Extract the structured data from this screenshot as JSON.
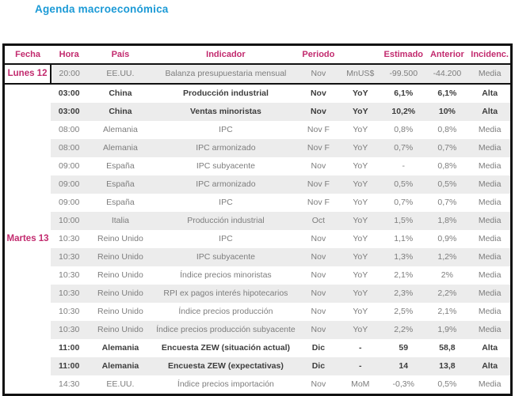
{
  "title": "Agenda macroeconómica",
  "colors": {
    "accent_blue": "#1b9ad6",
    "accent_magenta": "#c22a6e",
    "row_shade": "#ececec",
    "text_gray": "#7d7d7d",
    "text_dark": "#3d3d3d",
    "border": "#111111"
  },
  "table": {
    "columns": [
      "Fecha",
      "Hora",
      "País",
      "Indicador",
      "Periodo",
      "",
      "Estimado",
      "Anterior",
      "Incidenc."
    ],
    "groups": [
      {
        "label": "Lunes 12",
        "rows": [
          {
            "hora": "20:00",
            "pais": "EE.UU.",
            "indicador": "Balanza presupuestaria mensual",
            "periodo": "Nov",
            "unidad": "MnUS$",
            "estimado": "-99.500",
            "anterior": "-44.200",
            "incidencia": "Media"
          }
        ]
      },
      {
        "label": "Martes 13",
        "rows": [
          {
            "hora": "03:00",
            "pais": "China",
            "indicador": "Producción industrial",
            "periodo": "Nov",
            "unidad": "YoY",
            "estimado": "6,1%",
            "anterior": "6,1%",
            "incidencia": "Alta"
          },
          {
            "hora": "03:00",
            "pais": "China",
            "indicador": "Ventas minoristas",
            "periodo": "Nov",
            "unidad": "YoY",
            "estimado": "10,2%",
            "anterior": "10%",
            "incidencia": "Alta"
          },
          {
            "hora": "08:00",
            "pais": "Alemania",
            "indicador": "IPC",
            "periodo": "Nov F",
            "unidad": "YoY",
            "estimado": "0,8%",
            "anterior": "0,8%",
            "incidencia": "Media"
          },
          {
            "hora": "08:00",
            "pais": "Alemania",
            "indicador": "IPC armonizado",
            "periodo": "Nov F",
            "unidad": "YoY",
            "estimado": "0,7%",
            "anterior": "0,7%",
            "incidencia": "Media"
          },
          {
            "hora": "09:00",
            "pais": "España",
            "indicador": "IPC subyacente",
            "periodo": "Nov",
            "unidad": "YoY",
            "estimado": "-",
            "anterior": "0,8%",
            "incidencia": "Media"
          },
          {
            "hora": "09:00",
            "pais": "España",
            "indicador": "IPC armonizado",
            "periodo": "Nov F",
            "unidad": "YoY",
            "estimado": "0,5%",
            "anterior": "0,5%",
            "incidencia": "Media"
          },
          {
            "hora": "09:00",
            "pais": "España",
            "indicador": "IPC",
            "periodo": "Nov F",
            "unidad": "YoY",
            "estimado": "0,7%",
            "anterior": "0,7%",
            "incidencia": "Media"
          },
          {
            "hora": "10:00",
            "pais": "Italia",
            "indicador": "Producción industrial",
            "periodo": "Oct",
            "unidad": "YoY",
            "estimado": "1,5%",
            "anterior": "1,8%",
            "incidencia": "Media"
          },
          {
            "hora": "10:30",
            "pais": "Reino Unido",
            "indicador": "IPC",
            "periodo": "Nov",
            "unidad": "YoY",
            "estimado": "1,1%",
            "anterior": "0,9%",
            "incidencia": "Media"
          },
          {
            "hora": "10:30",
            "pais": "Reino Unido",
            "indicador": "IPC subyacente",
            "periodo": "Nov",
            "unidad": "YoY",
            "estimado": "1,3%",
            "anterior": "1,2%",
            "incidencia": "Media"
          },
          {
            "hora": "10:30",
            "pais": "Reino Unido",
            "indicador": "Índice precios minoristas",
            "periodo": "Nov",
            "unidad": "YoY",
            "estimado": "2,1%",
            "anterior": "2%",
            "incidencia": "Media"
          },
          {
            "hora": "10:30",
            "pais": "Reino Unido",
            "indicador": "RPI ex pagos interés hipotecarios",
            "periodo": "Nov",
            "unidad": "YoY",
            "estimado": "2,3%",
            "anterior": "2,2%",
            "incidencia": "Media"
          },
          {
            "hora": "10:30",
            "pais": "Reino Unido",
            "indicador": "Índice precios producción",
            "periodo": "Nov",
            "unidad": "YoY",
            "estimado": "2,5%",
            "anterior": "2,1%",
            "incidencia": "Media"
          },
          {
            "hora": "10:30",
            "pais": "Reino Unido",
            "indicador": "Índice precios producción subyacente",
            "periodo": "Nov",
            "unidad": "YoY",
            "estimado": "2,2%",
            "anterior": "1,9%",
            "incidencia": "Media"
          },
          {
            "hora": "11:00",
            "pais": "Alemania",
            "indicador": "Encuesta ZEW (situación actual)",
            "periodo": "Dic",
            "unidad": "-",
            "estimado": "59",
            "anterior": "58,8",
            "incidencia": "Alta"
          },
          {
            "hora": "11:00",
            "pais": "Alemania",
            "indicador": "Encuesta ZEW (expectativas)",
            "periodo": "Dic",
            "unidad": "-",
            "estimado": "14",
            "anterior": "13,8",
            "incidencia": "Alta"
          },
          {
            "hora": "14:30",
            "pais": "EE.UU.",
            "indicador": "Índice precios importación",
            "periodo": "Nov",
            "unidad": "MoM",
            "estimado": "-0,3%",
            "anterior": "0,5%",
            "incidencia": "Media"
          }
        ]
      }
    ]
  }
}
